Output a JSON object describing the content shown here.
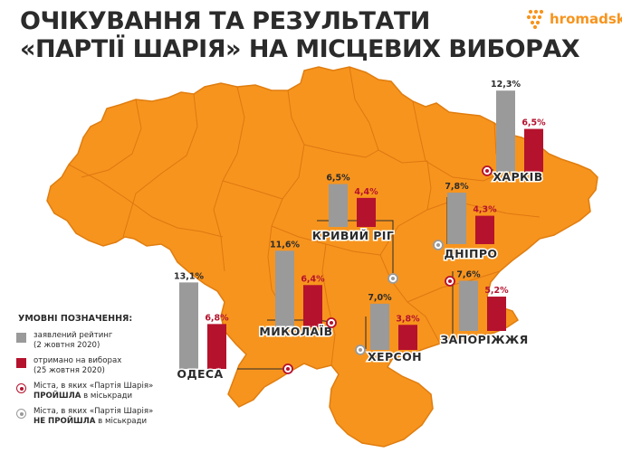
{
  "title": {
    "line1": "ОЧІКУВАННЯ ТА РЕЗУЛЬТАТИ",
    "line2": "«ПАРТІЇ ШАРІЯ» НА МІСЦЕВИХ ВИБОРАХ"
  },
  "logo": {
    "text": "hromadske",
    "icon": "hromadske-dots-icon"
  },
  "colors": {
    "map": "#f7941d",
    "border": "#d9700f",
    "declared": "#9a9a9a",
    "received": "#b5122d",
    "text": "#2b2b2b"
  },
  "legend": {
    "heading": "УМОВНІ ПОЗНАЧЕННЯ:",
    "declared": {
      "line1": "заявлений рейтинг",
      "line2": "(2 жовтня 2020)"
    },
    "received": {
      "line1": "отримано на виборах",
      "line2": "(25 жовтня 2020)"
    },
    "passed": {
      "line1": "Міста, в яких «Партія Шарія»",
      "line2_strong": "ПРОЙШЛА",
      "line2_rest": " в міськради"
    },
    "not_passed": {
      "line1": "Міста, в яких «Партія Шарія»",
      "line2_strong": "НЕ ПРОЙШЛА",
      "line2_rest": " в міськради"
    }
  },
  "chart_data": {
    "type": "bar",
    "unit": "%",
    "series": [
      {
        "name": "заявлений рейтинг (2 жовтня 2020)"
      },
      {
        "name": "отримано на виборах (25 жовтня 2020)"
      }
    ],
    "cities": [
      {
        "name": "ХАРКІВ",
        "declared": 12.3,
        "declared_label": "12,3%",
        "received": 6.5,
        "received_label": "6,5%",
        "passed": true
      },
      {
        "name": "КРИВИЙ РІГ",
        "declared": 6.5,
        "declared_label": "6,5%",
        "received": 4.4,
        "received_label": "4,4%",
        "passed": false
      },
      {
        "name": "ДНІПРО",
        "declared": 7.8,
        "declared_label": "7,8%",
        "received": 4.3,
        "received_label": "4,3%",
        "passed": false
      },
      {
        "name": "МИКОЛАЇВ",
        "declared": 11.6,
        "declared_label": "11,6%",
        "received": 6.4,
        "received_label": "6,4%",
        "passed": true
      },
      {
        "name": "ЗАПОРІЖЖЯ",
        "declared": 7.6,
        "declared_label": "7,6%",
        "received": 5.2,
        "received_label": "5,2%",
        "passed": true
      },
      {
        "name": "ХЕРСОН",
        "declared": 7.0,
        "declared_label": "7,0%",
        "received": 3.8,
        "received_label": "3,8%",
        "passed": false
      },
      {
        "name": "ОДЕСА",
        "declared": 13.1,
        "declared_label": "13,1%",
        "received": 6.8,
        "received_label": "6,8%",
        "passed": true
      }
    ]
  }
}
